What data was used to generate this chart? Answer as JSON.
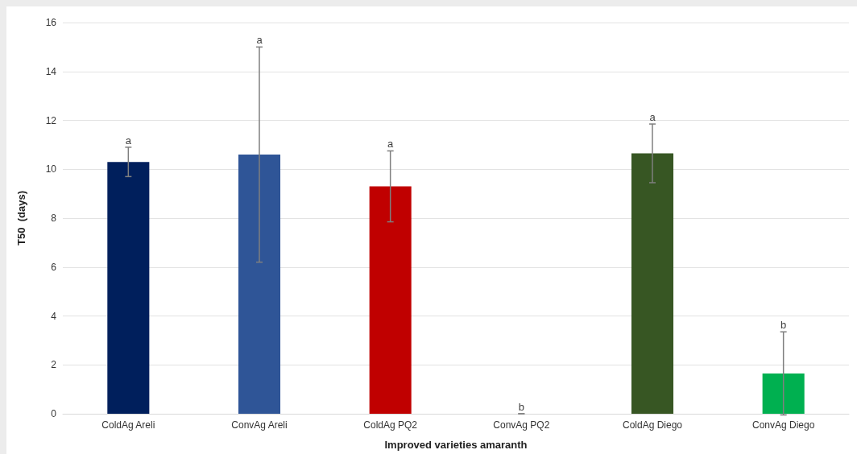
{
  "chart_data": {
    "type": "bar",
    "xlabel": "Improved varieties amaranth",
    "ylabel": "T50  (days)",
    "categories": [
      "ColdAg Areli",
      "ConvAg Areli",
      "ColdAg PQ2",
      "ConvAg PQ2",
      "ColdAg Diego",
      "ConvAg Diego"
    ],
    "values": [
      10.3,
      10.6,
      9.3,
      0,
      10.65,
      1.65
    ],
    "errors": [
      0.6,
      4.4,
      1.45,
      0,
      1.2,
      1.7
    ],
    "colors": [
      "#001f5c",
      "#2f5597",
      "#c00000",
      "#d04040",
      "#375623",
      "#00b050"
    ],
    "ylim": [
      0,
      16
    ],
    "yticks": [
      0,
      2,
      4,
      6,
      8,
      10,
      12,
      14,
      16
    ],
    "grid": "y",
    "annotations": [
      {
        "text": "a",
        "x": "ColdAg Areli",
        "y": 10.9
      },
      {
        "text": "a",
        "x": "ConvAg Areli",
        "y": 15.0
      },
      {
        "text": "a",
        "x": "ColdAg PQ2",
        "y": 10.75
      },
      {
        "text": "b",
        "x": "ConvAg PQ2",
        "y": 0
      },
      {
        "text": "a",
        "x": "ColdAg Diego",
        "y": 11.85
      },
      {
        "text": "b",
        "x": "ConvAg Diego",
        "y": 3.35
      }
    ]
  }
}
